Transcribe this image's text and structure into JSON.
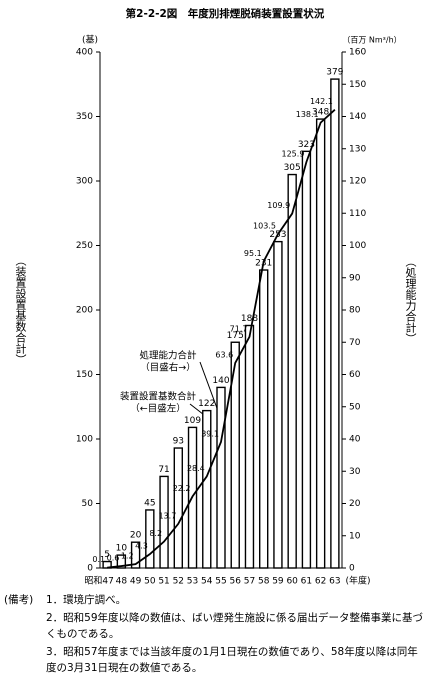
{
  "chart_data": {
    "type": "bar",
    "title": "第2-2-2図　年度別排煙脱硝装置設置状況",
    "categories": [
      "昭和47",
      "48",
      "49",
      "50",
      "51",
      "52",
      "53",
      "54",
      "55",
      "56",
      "57",
      "58",
      "59",
      "60",
      "61",
      "62",
      "63"
    ],
    "xlabel": "(年度)",
    "ylabel": "（装置設置基数合計）",
    "yunit": "(基)",
    "y2label": "（処理能力合計）",
    "y2unit": "（百万 Nm³/h）",
    "series": [
      {
        "name": "装置設置基数合計",
        "annotation": "（←目盛左）",
        "type": "bar",
        "color": "#000000",
        "values": [
          5,
          10,
          20,
          45,
          71,
          93,
          109,
          122,
          140,
          175,
          188,
          231,
          253,
          305,
          323,
          348,
          379
        ]
      },
      {
        "name": "処理能力合計",
        "annotation": "（目盛右→）",
        "type": "line",
        "axis": "y2",
        "color": "#000000",
        "values": [
          0.1,
          0.6,
          1.2,
          4.3,
          8.2,
          13.7,
          22.2,
          28.4,
          39.1,
          63.6,
          71.7,
          95.1,
          103.5,
          109.9,
          125.9,
          138.1,
          142.1
        ]
      }
    ],
    "ylim": [
      0,
      400
    ],
    "yticks": [
      0,
      50,
      100,
      150,
      200,
      250,
      300,
      350,
      400
    ],
    "y2lim": [
      0,
      160
    ],
    "y2ticks": [
      0,
      10,
      20,
      30,
      40,
      50,
      60,
      70,
      80,
      90,
      100,
      110,
      120,
      130,
      140,
      150,
      160
    ],
    "notes": [
      "(備考)",
      "1．環境庁調べ。",
      "2．昭和59年度以降の数値は、ばい煙発生施設に係る届出データ整備事業に基づくものである。",
      "3．昭和57年度までは当該年度の1月1日現在の数値であり、58年度以降は同年度の3月31日現在の数値である。"
    ]
  }
}
